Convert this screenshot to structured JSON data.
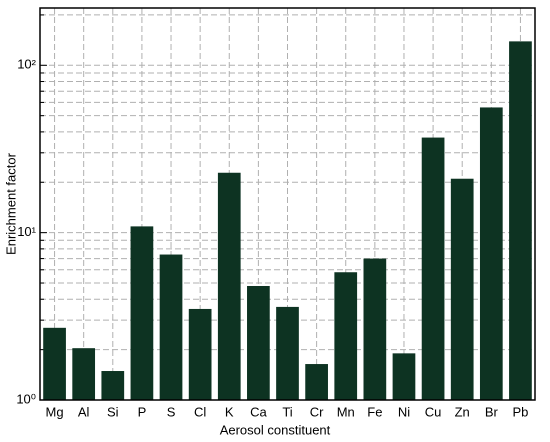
{
  "chart_data": {
    "type": "bar",
    "x_label": "Aerosol constituent",
    "y_label": "Enrichment factor",
    "categories": [
      "Mg",
      "Al",
      "Si",
      "P",
      "S",
      "Cl",
      "K",
      "Ca",
      "Ti",
      "Cr",
      "Mn",
      "Fe",
      "Ni",
      "Cu",
      "Zn",
      "Br",
      "Pb"
    ],
    "values": [
      2.7,
      2.04,
      1.49,
      10.9,
      7.4,
      3.5,
      22.8,
      4.8,
      3.6,
      1.64,
      5.8,
      7.0,
      1.9,
      37,
      21,
      56,
      139
    ],
    "color": "#0d3322",
    "log_y": true,
    "ylim": [
      1,
      220
    ],
    "yticks": [
      {
        "value": 1,
        "label": "10⁰"
      },
      {
        "value": 10,
        "label": "10¹"
      },
      {
        "value": 100,
        "label": "10²"
      }
    ],
    "yminorticks": [
      2,
      3,
      4,
      5,
      6,
      7,
      8,
      9,
      20,
      30,
      40,
      50,
      60,
      70,
      80,
      90,
      200
    ],
    "grid": true
  }
}
